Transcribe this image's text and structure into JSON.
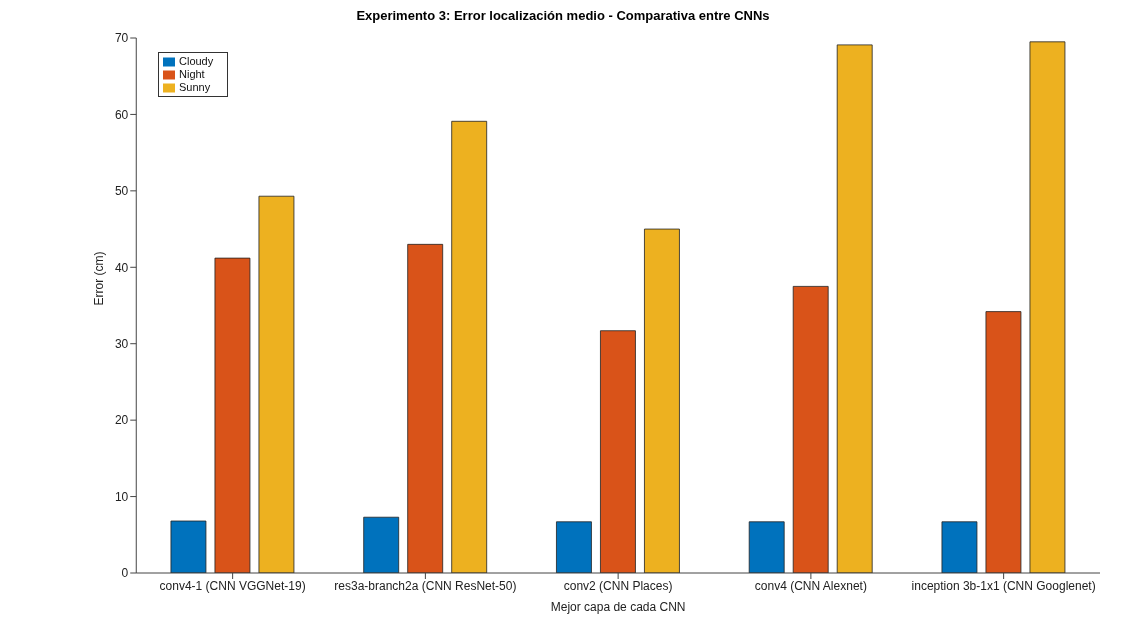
{
  "chart_data": {
    "type": "bar",
    "title": "Experimento 3: Error localización medio - Comparativa entre CNNs",
    "xlabel": "Mejor capa de cada CNN",
    "ylabel": "Error (cm)",
    "categories": [
      "conv4-1 (CNN VGGNet-19)",
      "res3a-branch2a (CNN ResNet-50)",
      "conv2 (CNN Places)",
      "conv4 (CNN Alexnet)",
      "inception 3b-1x1 (CNN Googlenet)"
    ],
    "series": [
      {
        "name": "Cloudy",
        "color": "#0072bd",
        "values": [
          6.8,
          7.3,
          6.7,
          6.7,
          6.7
        ]
      },
      {
        "name": "Night",
        "color": "#d95319",
        "values": [
          41.2,
          43.0,
          31.7,
          37.5,
          34.2
        ]
      },
      {
        "name": "Sunny",
        "color": "#edb120",
        "values": [
          49.3,
          59.1,
          45.0,
          69.1,
          69.5
        ]
      }
    ],
    "ylim": [
      0,
      70
    ],
    "yticks": [
      0,
      10,
      20,
      30,
      40,
      50,
      60,
      70
    ],
    "grid": false,
    "legend": "top left"
  }
}
